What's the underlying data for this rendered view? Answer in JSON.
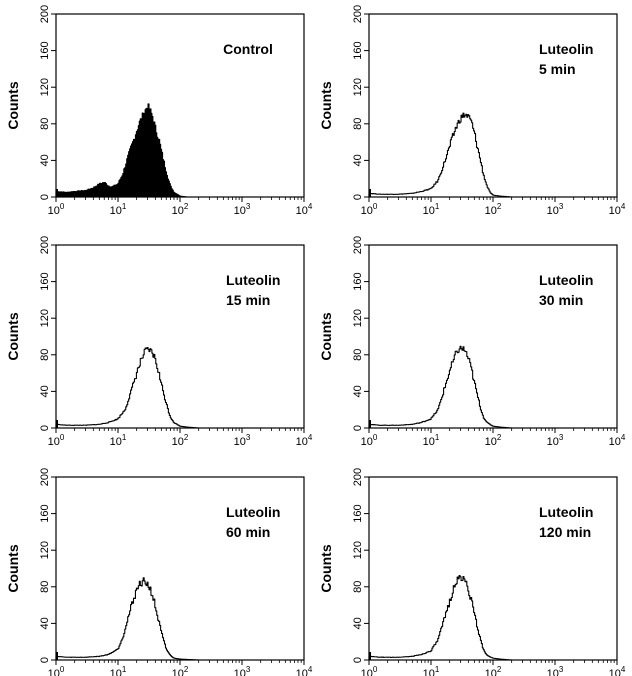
{
  "chart_data": [
    {
      "type": "area",
      "label_lines": [
        "Control"
      ],
      "filled": true,
      "ylabel": "Counts",
      "x_scale": "log",
      "xlim": [
        1,
        10000
      ],
      "ylim": [
        0,
        200
      ],
      "yticks": [
        0,
        40,
        80,
        120,
        160,
        200
      ],
      "xticks": [
        1,
        10,
        100,
        1000,
        10000
      ],
      "x": [
        1,
        1.5,
        2,
        3,
        4,
        5,
        6,
        7,
        8,
        10,
        12,
        14,
        16,
        18,
        20,
        22,
        25,
        28,
        30,
        33,
        36,
        40,
        45,
        50,
        56,
        63,
        70,
        80,
        90,
        100,
        130,
        200,
        400,
        1000,
        10000
      ],
      "y": [
        6,
        5,
        6,
        7,
        10,
        14,
        16,
        12,
        11,
        14,
        25,
        40,
        52,
        62,
        72,
        80,
        88,
        95,
        100,
        94,
        88,
        75,
        65,
        50,
        36,
        22,
        12,
        5,
        3,
        1,
        0,
        0,
        0,
        0,
        0
      ]
    },
    {
      "type": "line",
      "label_lines": [
        "Luteolin",
        "5 min"
      ],
      "filled": false,
      "ylabel": "Counts",
      "x_scale": "log",
      "xlim": [
        1,
        10000
      ],
      "ylim": [
        0,
        200
      ],
      "yticks": [
        0,
        40,
        80,
        120,
        160,
        200
      ],
      "xticks": [
        1,
        10,
        100,
        1000,
        10000
      ],
      "x": [
        1,
        1.5,
        2,
        3,
        5,
        7,
        10,
        13,
        16,
        20,
        25,
        30,
        35,
        40,
        45,
        50,
        56,
        63,
        70,
        80,
        90,
        100,
        130,
        200,
        1000,
        10000
      ],
      "y": [
        4,
        3,
        3,
        3,
        4,
        6,
        9,
        18,
        35,
        55,
        75,
        86,
        90,
        88,
        82,
        70,
        55,
        40,
        25,
        12,
        5,
        2,
        1,
        0,
        0,
        0
      ]
    },
    {
      "type": "line",
      "label_lines": [
        "Luteolin",
        "15 min"
      ],
      "filled": false,
      "ylabel": "Counts",
      "x_scale": "log",
      "xlim": [
        1,
        10000
      ],
      "ylim": [
        0,
        200
      ],
      "yticks": [
        0,
        40,
        80,
        120,
        160,
        200
      ],
      "xticks": [
        1,
        10,
        100,
        1000,
        10000
      ],
      "x": [
        1,
        1.5,
        2,
        3,
        5,
        7,
        10,
        13,
        16,
        20,
        25,
        28,
        32,
        36,
        40,
        45,
        50,
        56,
        63,
        70,
        80,
        100,
        130,
        200,
        1000,
        10000
      ],
      "y": [
        4,
        3,
        3,
        3,
        4,
        6,
        10,
        20,
        38,
        60,
        78,
        84,
        85,
        82,
        75,
        62,
        48,
        35,
        22,
        12,
        6,
        2,
        1,
        0,
        0,
        0
      ]
    },
    {
      "type": "line",
      "label_lines": [
        "Luteolin",
        "30 min"
      ],
      "filled": false,
      "ylabel": "Counts",
      "x_scale": "log",
      "xlim": [
        1,
        10000
      ],
      "ylim": [
        0,
        200
      ],
      "yticks": [
        0,
        40,
        80,
        120,
        160,
        200
      ],
      "xticks": [
        1,
        10,
        100,
        1000,
        10000
      ],
      "x": [
        1,
        1.5,
        2,
        3,
        5,
        7,
        10,
        13,
        16,
        20,
        25,
        28,
        32,
        36,
        40,
        45,
        50,
        56,
        63,
        70,
        80,
        100,
        130,
        200,
        1000,
        10000
      ],
      "y": [
        4,
        3,
        3,
        3,
        4,
        6,
        10,
        20,
        40,
        62,
        80,
        86,
        87,
        84,
        76,
        64,
        50,
        36,
        22,
        12,
        6,
        2,
        1,
        0,
        0,
        0
      ]
    },
    {
      "type": "line",
      "label_lines": [
        "Luteolin",
        "60 min"
      ],
      "filled": false,
      "ylabel": "Counts",
      "x_scale": "log",
      "xlim": [
        1,
        10000
      ],
      "ylim": [
        0,
        200
      ],
      "yticks": [
        0,
        40,
        80,
        120,
        160,
        200
      ],
      "xticks": [
        1,
        10,
        100,
        1000,
        10000
      ],
      "x": [
        1,
        1.5,
        2,
        3,
        5,
        7,
        10,
        12,
        14,
        17,
        20,
        23,
        26,
        30,
        34,
        38,
        42,
        47,
        53,
        60,
        70,
        80,
        100,
        200,
        1000,
        10000
      ],
      "y": [
        4,
        3,
        3,
        3,
        4,
        6,
        12,
        25,
        42,
        62,
        77,
        84,
        86,
        83,
        76,
        65,
        52,
        38,
        24,
        12,
        5,
        2,
        1,
        0,
        0,
        0
      ]
    },
    {
      "type": "line",
      "label_lines": [
        "Luteolin",
        "120 min"
      ],
      "filled": false,
      "ylabel": "Counts",
      "x_scale": "log",
      "xlim": [
        1,
        10000
      ],
      "ylim": [
        0,
        200
      ],
      "yticks": [
        0,
        40,
        80,
        120,
        160,
        200
      ],
      "xticks": [
        1,
        10,
        100,
        1000,
        10000
      ],
      "x": [
        1,
        1.5,
        2,
        3,
        5,
        7,
        10,
        13,
        16,
        20,
        24,
        28,
        32,
        36,
        40,
        45,
        50,
        56,
        63,
        70,
        80,
        100,
        130,
        200,
        1000,
        10000
      ],
      "y": [
        4,
        3,
        3,
        3,
        4,
        6,
        10,
        22,
        42,
        64,
        82,
        89,
        90,
        86,
        78,
        65,
        50,
        36,
        22,
        12,
        5,
        2,
        1,
        0,
        0,
        0
      ]
    }
  ]
}
